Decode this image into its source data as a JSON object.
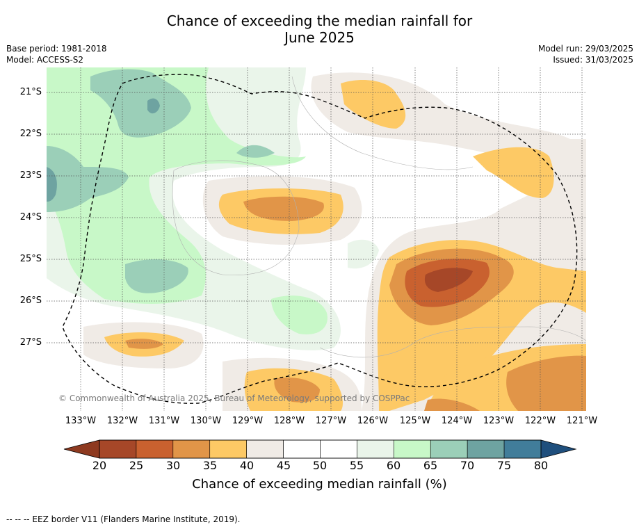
{
  "header": {
    "title_line1": "Chance of exceeding the median rainfall for",
    "title_line2": "June 2025",
    "base_period": "Base period: 1981-2018",
    "model": "Model: ACCESS-S2",
    "model_run": "Model run: 29/03/2025",
    "issued": "Issued: 31/03/2025"
  },
  "map": {
    "lat_labels": [
      "21°S",
      "22°S",
      "23°S",
      "24°S",
      "25°S",
      "26°S",
      "27°S"
    ],
    "lon_labels": [
      "133°W",
      "132°W",
      "131°W",
      "130°W",
      "129°W",
      "128°W",
      "127°W",
      "126°W",
      "125°W",
      "124°W",
      "123°W",
      "122°W",
      "121°W"
    ],
    "copyright": "© Commonwealth of Australia 2025, Bureau of Meteorology, supported by COSPPac",
    "boundary_style": "dashed"
  },
  "colorbar": {
    "ticks": [
      "20",
      "25",
      "30",
      "35",
      "40",
      "45",
      "50",
      "55",
      "60",
      "65",
      "70",
      "75",
      "80"
    ],
    "label": "Chance of exceeding median rainfall (%)",
    "colors": [
      "#a64728",
      "#c9612f",
      "#e19548",
      "#fdc965",
      "#f0ebe6",
      "#ffffff",
      "#ffffff",
      "#eaf5ea",
      "#c8f8c8",
      "#9bcfb8",
      "#6ea3a1",
      "#417d9a"
    ],
    "under_color": "#8e3a20",
    "over_color": "#1f4f7d"
  },
  "footnote": "--  --  -- EEZ border V11 (Flanders Marine Institute, 2019)."
}
